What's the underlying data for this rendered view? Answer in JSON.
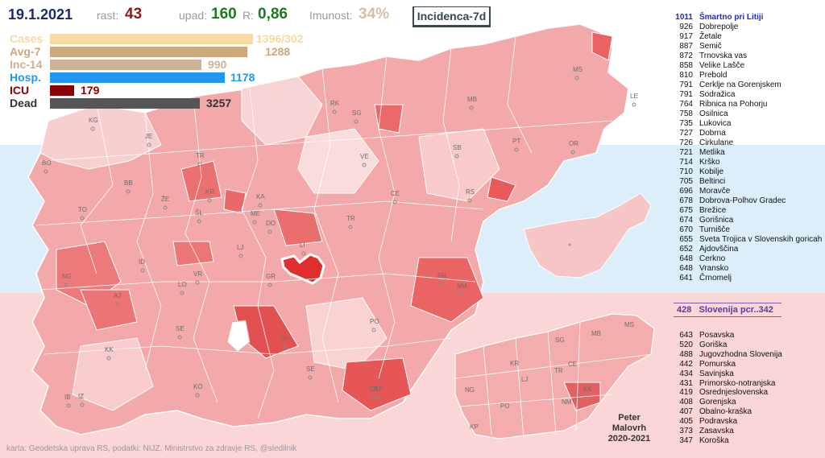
{
  "header": {
    "date": "19.1.2021",
    "rast_label": "rast:",
    "rast_value": "43",
    "upad_label": "upad:",
    "upad_value": "160",
    "r_label": "R:",
    "r_value": "0,86",
    "imunost_label": "Imunost:",
    "imunost_value": "34%",
    "mode": "Incidenca-7d"
  },
  "stats": [
    {
      "label": "Cases",
      "value": "1396/302",
      "color": "#f7d9a2"
    },
    {
      "label": "Avg-7",
      "value": "1288",
      "color": "#cfa77c"
    },
    {
      "label": "Inc-14",
      "value": "990",
      "color": "#cfb196"
    },
    {
      "label": "Hosp.",
      "value": "1178",
      "color": "#2196f3"
    },
    {
      "label": "ICU",
      "value": "179",
      "color": "#8b0000"
    },
    {
      "label": "Dead",
      "value": "3257",
      "color": "#555555"
    }
  ],
  "ranking": [
    {
      "value": "1011",
      "name": "Šmartno pri Litiji"
    },
    {
      "value": "926",
      "name": "Dobrepolje"
    },
    {
      "value": "917",
      "name": "Žetale"
    },
    {
      "value": "887",
      "name": "Semič"
    },
    {
      "value": "872",
      "name": "Trnovska vas"
    },
    {
      "value": "858",
      "name": "Velike Lašče"
    },
    {
      "value": "810",
      "name": "Prebold"
    },
    {
      "value": "791",
      "name": "Cerklje na Gorenjskem"
    },
    {
      "value": "791",
      "name": "Sodražica"
    },
    {
      "value": "764",
      "name": "Ribnica na Pohorju"
    },
    {
      "value": "758",
      "name": "Osilnica"
    },
    {
      "value": "735",
      "name": "Lukovica"
    },
    {
      "value": "727",
      "name": "Dobrna"
    },
    {
      "value": "726",
      "name": "Cirkulane"
    },
    {
      "value": "721",
      "name": "Metlika"
    },
    {
      "value": "714",
      "name": "Krško"
    },
    {
      "value": "710",
      "name": "Kobilje"
    },
    {
      "value": "705",
      "name": "Beltinci"
    },
    {
      "value": "696",
      "name": "Moravče"
    },
    {
      "value": "678",
      "name": "Dobrova-Polhov Gradec"
    },
    {
      "value": "675",
      "name": "Brežice"
    },
    {
      "value": "674",
      "name": "Gorišnica"
    },
    {
      "value": "670",
      "name": "Turnišče"
    },
    {
      "value": "655",
      "name": "Sveta Trojica v Slovenskih goricah"
    },
    {
      "value": "652",
      "name": "Ajdovščina"
    },
    {
      "value": "648",
      "name": "Cerkno"
    },
    {
      "value": "648",
      "name": "Vransko"
    },
    {
      "value": "641",
      "name": "Črnomelj"
    }
  ],
  "slovenia": {
    "value": "428",
    "label": "Slovenija  pcr..342"
  },
  "regions": [
    {
      "value": "643",
      "name": "Posavska"
    },
    {
      "value": "520",
      "name": "Goriška"
    },
    {
      "value": "488",
      "name": "Jugovzhodna Slovenija"
    },
    {
      "value": "442",
      "name": "Pomurska"
    },
    {
      "value": "434",
      "name": "Savinjska"
    },
    {
      "value": "431",
      "name": "Primorsko-notranjska"
    },
    {
      "value": "419",
      "name": "Osrednjeslovenska"
    },
    {
      "value": "408",
      "name": "Gorenjska"
    },
    {
      "value": "407",
      "name": "Obalno-kraška"
    },
    {
      "value": "405",
      "name": "Podravska"
    },
    {
      "value": "373",
      "name": "Zasavska"
    },
    {
      "value": "347",
      "name": "Koroška"
    }
  ],
  "author": {
    "line1": "Peter",
    "line2": "Malovrh",
    "line3": "2020-2021"
  },
  "credits": "karta: Geodetska uprava RS,  podatki: NIJZ, Ministrstvo za zdravje RS, @sledilnik",
  "map_cities": [
    "KG",
    "JE",
    "BO",
    "TR",
    "BB",
    "KR",
    "ŽE",
    "KA",
    "ŠL",
    "TO",
    "ME",
    "DO",
    "LJ",
    "TR",
    "CE",
    "VE",
    "SG",
    "RK",
    "MB",
    "MS",
    "LE",
    "PT",
    "OR",
    "SB",
    "RS",
    "LI",
    "ID",
    "NG",
    "VR",
    "LO",
    "GR",
    "AJ",
    "SE",
    "KK",
    "BR",
    "NM",
    "PO",
    "RI",
    "SE",
    "KO",
    "IB",
    "IZ",
    "KP",
    "ČR"
  ],
  "mini_map_cities": [
    "SG",
    "MB",
    "MS",
    "KR",
    "CE",
    "TR",
    "LJ",
    "NG",
    "PO",
    "NM",
    "KK",
    "KP"
  ],
  "colors": {
    "light": "#fbdcdc",
    "mid": "#f4a3a3",
    "strong": "#ec6f6f",
    "dark": "#e24a4a",
    "highlight": "#e23838"
  }
}
